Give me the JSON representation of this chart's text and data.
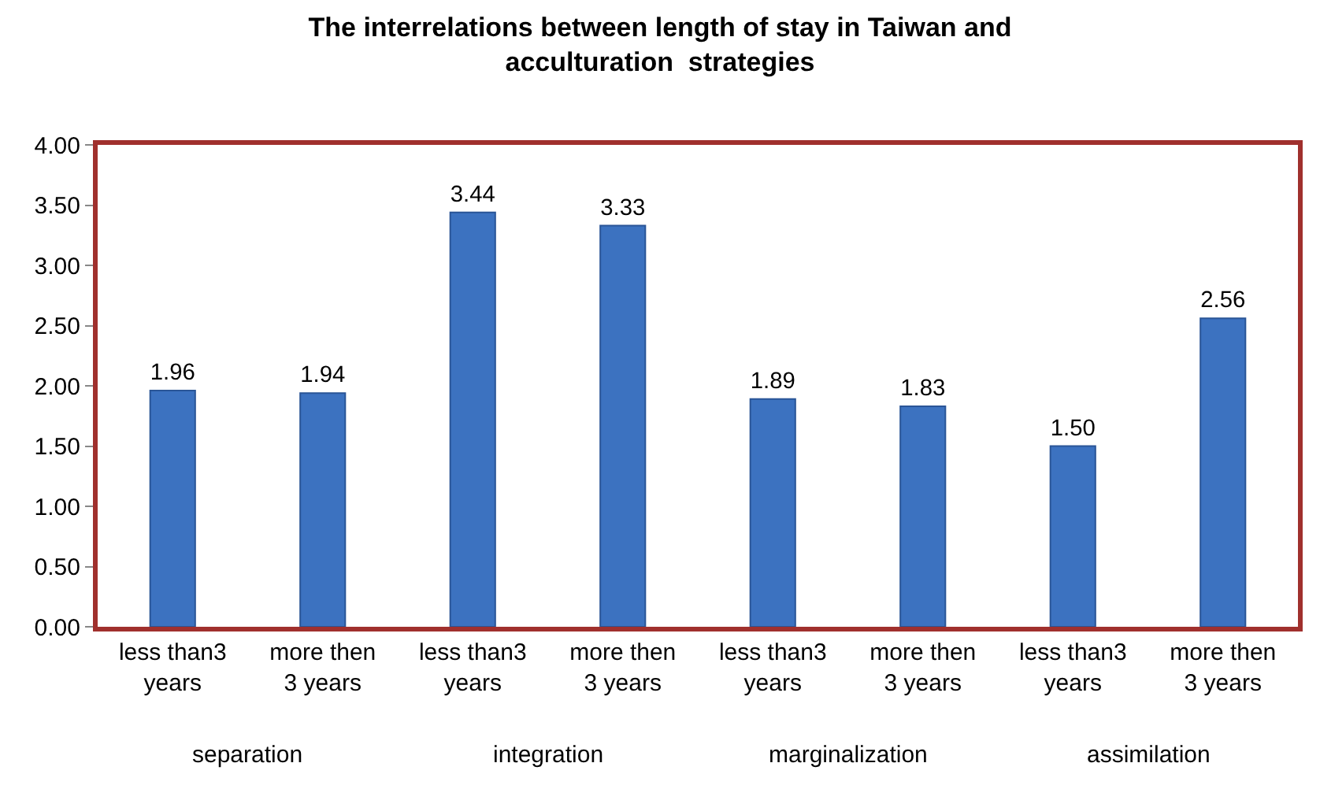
{
  "chart_data": {
    "type": "bar",
    "title": "The interrelations between length of stay in Taiwan and\nacculturation  strategies",
    "categories": [
      "less than3\nyears",
      "more then\n3 years",
      "less than3\nyears",
      "more then\n3 years",
      "less than3\nyears",
      "more then\n3 years",
      "less than3\nyears",
      "more then\n3 years"
    ],
    "values": [
      1.96,
      1.94,
      3.44,
      3.33,
      1.89,
      1.83,
      1.5,
      2.56
    ],
    "color": "#3c72c0",
    "value_labels": [
      "1.96",
      "1.94",
      "3.44",
      "3.33",
      "1.89",
      "1.83",
      "1.50",
      "2.56"
    ],
    "ylim": [
      0,
      4
    ],
    "yticks": [
      {
        "value": 0,
        "label": "0.00"
      },
      {
        "value": 0.5,
        "label": "0.50"
      },
      {
        "value": 1,
        "label": "1.00"
      },
      {
        "value": 1.5,
        "label": "1.50"
      },
      {
        "value": 2,
        "label": "2.00"
      },
      {
        "value": 2.5,
        "label": "2.50"
      },
      {
        "value": 3,
        "label": "3.00"
      },
      {
        "value": 3.5,
        "label": "3.50"
      },
      {
        "value": 4,
        "label": "4.00"
      }
    ],
    "annotations": [
      "separation",
      "integration",
      "marginalization",
      "assimilation"
    ]
  }
}
